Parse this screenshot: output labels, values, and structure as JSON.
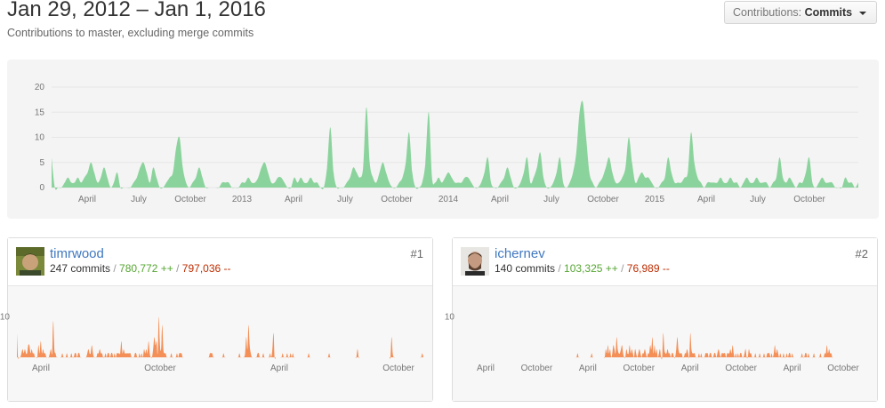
{
  "header": {
    "title": "Jan 29, 2012 – Jan 1, 2016",
    "subtitle": "Contributions to master, excluding merge commits",
    "select_label": "Contributions:",
    "select_value": "Commits"
  },
  "colors": {
    "main_area": "#8bd39c",
    "contributor_area": "#f38f57",
    "link": "#4078c0",
    "additions": "#55a532",
    "deletions": "#bd2c00"
  },
  "chart_data": [
    {
      "type": "area",
      "y_ticks": [
        "20",
        "15",
        "10",
        "5",
        "0"
      ],
      "ylim": [
        0,
        20
      ],
      "x_tick_labels": [
        "April",
        "July",
        "October",
        "2013",
        "April",
        "July",
        "October",
        "2014",
        "April",
        "July",
        "October",
        "2015",
        "April",
        "July",
        "October"
      ],
      "grid": true,
      "weekly_commits": [
        6,
        0,
        0,
        0,
        1,
        2,
        1,
        1,
        2,
        1,
        2,
        3,
        5,
        3,
        1,
        2,
        4,
        2,
        0,
        1,
        3,
        0,
        0,
        0,
        0,
        1,
        2,
        4,
        5,
        3,
        1,
        4,
        2,
        0,
        0,
        1,
        2,
        3,
        8,
        10,
        4,
        1,
        0,
        1,
        2,
        4,
        2,
        0,
        0,
        0,
        0,
        0,
        1,
        1,
        1,
        0,
        0,
        0,
        1,
        1,
        2,
        1,
        1,
        2,
        4,
        5,
        3,
        1,
        1,
        2,
        2,
        1,
        0,
        0,
        2,
        1,
        2,
        1,
        1,
        2,
        1,
        1,
        0,
        0,
        4,
        12,
        3,
        0,
        0,
        0,
        1,
        2,
        4,
        3,
        2,
        4,
        16,
        5,
        2,
        1,
        3,
        5,
        3,
        1,
        0,
        0,
        1,
        2,
        5,
        11,
        3,
        0,
        0,
        1,
        5,
        15,
        2,
        1,
        2,
        1,
        2,
        3,
        2,
        1,
        1,
        1,
        2,
        2,
        1,
        0,
        0,
        1,
        3,
        6,
        1,
        0,
        0,
        1,
        2,
        4,
        2,
        0,
        0,
        1,
        3,
        6,
        1,
        2,
        4,
        7,
        2,
        0,
        0,
        1,
        3,
        6,
        1,
        0,
        1,
        3,
        7,
        15,
        17,
        10,
        3,
        1,
        0,
        1,
        2,
        4,
        6,
        3,
        1,
        1,
        2,
        4,
        10,
        5,
        1,
        2,
        3,
        2,
        2,
        1,
        0,
        0,
        1,
        2,
        6,
        3,
        1,
        1,
        1,
        2,
        3,
        11,
        5,
        2,
        1,
        0,
        1,
        1,
        1,
        1,
        2,
        1,
        1,
        2,
        1,
        1,
        0,
        1,
        2,
        1,
        1,
        2,
        1,
        1,
        1,
        0,
        1,
        2,
        6,
        2,
        1,
        2,
        1,
        0,
        1,
        1,
        3,
        6,
        1,
        0,
        1,
        2,
        1,
        1,
        1,
        0,
        0,
        0,
        2,
        1,
        1,
        0,
        1
      ]
    },
    {
      "type": "area",
      "series_name": "timrwood",
      "y_ticks": [
        "10"
      ],
      "x_tick_labels": [
        "April",
        "October",
        "April",
        "October"
      ],
      "weekly_commits": [
        6,
        0,
        0,
        0,
        1,
        2,
        1,
        2,
        1,
        1,
        3,
        3,
        1,
        2,
        1,
        1,
        0,
        0,
        0,
        3,
        1,
        4,
        1,
        2,
        1,
        1,
        0,
        0,
        0,
        1,
        2,
        1,
        9,
        2,
        1,
        0,
        0,
        0,
        0,
        0,
        1,
        0,
        0,
        0,
        1,
        0,
        0,
        0,
        1,
        0,
        0,
        1,
        1,
        0,
        1,
        1,
        0,
        0,
        0,
        0,
        0,
        0,
        1,
        2,
        1,
        1,
        3,
        1,
        0,
        0,
        0,
        1,
        1,
        2,
        1,
        1,
        0,
        0,
        1,
        0,
        1,
        1,
        0,
        1,
        1,
        0,
        1,
        0,
        1,
        1,
        1,
        1,
        4,
        1,
        2,
        1,
        1,
        1,
        1,
        1,
        1,
        0,
        0,
        0,
        1,
        1,
        0,
        0,
        1,
        0,
        1,
        0,
        2,
        1,
        2,
        1,
        4,
        1,
        0,
        0,
        2,
        5,
        3,
        4,
        1,
        10,
        3,
        2,
        8,
        2,
        1,
        1,
        0,
        0,
        0,
        0,
        1,
        0,
        0,
        0,
        0,
        1,
        0,
        1,
        1,
        1,
        0,
        0,
        0,
        0,
        0,
        0,
        0,
        0,
        0,
        0,
        0,
        0,
        0,
        0,
        0,
        0,
        0,
        0,
        0,
        0,
        0,
        0,
        0,
        0,
        1,
        1,
        1,
        0,
        0,
        0,
        0,
        0,
        0,
        0,
        0,
        0,
        1,
        0,
        0,
        0,
        0,
        0,
        0,
        0,
        0,
        0,
        0,
        0,
        0,
        0,
        1,
        0,
        0,
        0,
        0,
        1,
        5,
        2,
        8,
        3,
        1,
        0,
        0,
        0,
        0,
        0,
        1,
        1,
        0,
        0,
        0,
        1,
        0,
        0,
        0,
        0,
        0,
        1,
        0,
        2,
        6,
        0,
        0,
        0,
        0,
        0,
        0,
        0,
        1,
        0,
        0,
        0,
        1,
        0,
        0,
        1,
        0,
        1,
        0,
        0,
        0,
        0,
        0,
        0,
        0,
        0,
        0,
        0,
        0,
        0,
        0,
        1,
        0,
        0,
        0,
        0,
        0,
        0,
        0,
        0,
        0,
        0,
        0,
        0,
        0,
        0,
        0,
        0,
        0,
        1,
        0,
        0,
        0,
        0,
        0,
        0,
        0,
        0,
        0,
        0,
        0,
        0,
        0,
        0,
        0,
        0,
        0,
        0,
        0,
        0,
        0,
        0,
        0,
        0,
        2,
        0,
        0,
        0,
        0,
        0,
        0,
        0,
        0,
        0,
        0,
        0,
        0,
        0,
        0,
        0,
        0,
        0,
        0,
        0,
        0,
        0,
        0,
        0,
        0,
        0,
        0,
        0,
        0,
        0,
        5,
        1,
        0,
        0,
        0,
        0,
        0,
        0,
        0,
        0,
        0,
        0,
        0,
        0,
        0,
        0,
        0,
        0,
        0,
        0,
        0,
        0,
        0,
        0,
        0,
        0,
        0,
        1,
        0
      ]
    },
    {
      "type": "area",
      "series_name": "ichernev",
      "y_ticks": [
        "10"
      ],
      "x_tick_labels": [
        "April",
        "October",
        "April",
        "October",
        "April",
        "October",
        "April",
        "October"
      ],
      "weekly_commits": [
        0,
        0,
        0,
        0,
        0,
        0,
        0,
        0,
        0,
        0,
        0,
        0,
        0,
        0,
        0,
        0,
        0,
        0,
        0,
        0,
        0,
        0,
        0,
        0,
        0,
        0,
        0,
        0,
        0,
        0,
        0,
        0,
        0,
        0,
        0,
        0,
        0,
        0,
        0,
        0,
        0,
        0,
        0,
        0,
        0,
        0,
        0,
        0,
        0,
        0,
        0,
        0,
        0,
        0,
        0,
        0,
        0,
        0,
        0,
        0,
        0,
        0,
        0,
        0,
        0,
        0,
        0,
        0,
        0,
        0,
        0,
        0,
        0,
        0,
        0,
        0,
        0,
        0,
        0,
        0,
        0,
        0,
        0,
        0,
        0,
        0,
        0,
        0,
        0,
        0,
        0,
        0,
        0,
        0,
        0,
        0,
        0,
        0,
        0,
        0,
        0,
        0,
        0,
        0,
        0,
        0,
        0,
        1,
        0,
        0,
        0,
        0,
        0,
        0,
        0,
        0,
        0,
        0,
        0,
        0,
        1,
        0,
        0,
        0,
        0,
        0,
        0,
        0,
        0,
        0,
        0,
        0,
        0,
        2,
        1,
        3,
        1,
        2,
        0,
        1,
        3,
        2,
        1,
        5,
        2,
        1,
        1,
        2,
        3,
        1,
        0,
        0,
        2,
        1,
        1,
        3,
        1,
        2,
        1,
        0,
        2,
        1,
        0,
        1,
        2,
        1,
        0,
        1,
        1,
        2,
        1,
        0,
        1,
        1,
        3,
        2,
        5,
        1,
        3,
        1,
        2,
        0,
        1,
        2,
        0,
        0,
        6,
        2,
        1,
        1,
        2,
        1,
        1,
        0,
        1,
        1,
        0,
        0,
        2,
        5,
        2,
        1,
        1,
        1,
        0,
        0,
        1,
        1,
        2,
        1,
        0,
        6,
        2,
        1,
        1,
        1,
        0,
        0,
        0,
        1,
        0,
        1,
        0,
        0,
        0,
        1,
        1,
        1,
        0,
        1,
        1,
        0,
        0,
        1,
        1,
        0,
        1,
        2,
        1,
        0,
        1,
        1,
        1,
        1,
        0,
        1,
        1,
        1,
        2,
        1,
        3,
        1,
        0,
        1,
        0,
        1,
        0,
        1,
        1,
        0,
        0,
        1,
        2,
        0,
        0,
        2,
        1,
        1,
        0,
        0,
        0,
        1,
        0,
        0,
        0,
        1,
        0,
        0,
        0,
        1,
        0,
        0,
        1,
        1,
        1,
        0,
        1,
        0,
        1,
        3,
        1,
        2,
        1,
        0,
        1,
        0,
        0,
        1,
        0,
        0,
        1,
        0,
        1,
        1,
        0,
        1,
        0,
        0,
        0,
        0,
        0,
        0,
        0,
        0,
        1,
        0,
        0,
        1,
        1,
        0,
        1,
        0,
        0,
        0,
        0,
        1,
        0,
        0,
        0,
        0,
        0,
        1,
        0,
        0,
        0,
        1,
        1,
        3,
        1,
        2,
        1,
        1,
        0,
        0,
        0,
        0,
        0,
        0,
        0,
        0,
        0,
        0,
        0,
        0,
        0,
        0,
        0,
        0,
        0,
        0,
        0,
        0,
        0,
        0,
        0,
        0,
        0,
        0,
        0,
        0,
        0,
        0,
        0,
        0,
        0,
        0
      ]
    }
  ],
  "contributors": [
    {
      "username": "timrwood",
      "commits": "247 commits",
      "additions": "780,772 ++",
      "deletions": "797,036 --",
      "rank": "#1",
      "avatar_icon": "avatar-photo"
    },
    {
      "username": "ichernev",
      "commits": "140 commits",
      "additions": "103,325 ++",
      "deletions": "76,989 --",
      "rank": "#2",
      "avatar_icon": "avatar-photo"
    }
  ]
}
